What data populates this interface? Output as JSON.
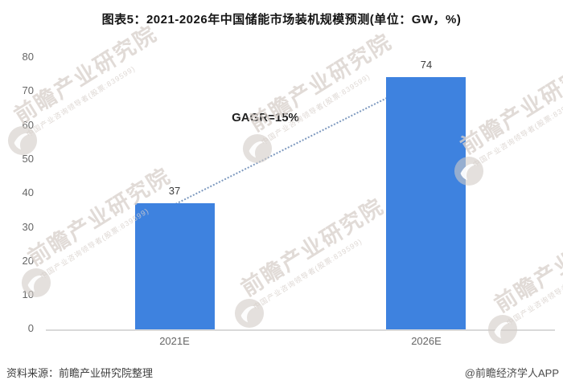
{
  "title": "图表5：2021-2026年中国储能市场装机规模预测(单位：GW，%)",
  "chart_data": {
    "type": "bar",
    "title": "图表5：2021-2026年中国储能市场装机规模预测",
    "unit_note": "单位：GW，%",
    "categories": [
      "2021E",
      "2026E"
    ],
    "values": [
      37,
      74
    ],
    "annotation": "GAGR=15%",
    "ylim": [
      0,
      80
    ],
    "yticks": [
      80,
      70,
      60,
      50,
      40,
      30,
      20,
      10,
      0
    ],
    "xlabel": "",
    "ylabel": "",
    "grid": false,
    "legend_position": "none",
    "bar_color": "#3E82DF",
    "trendline_color": "#7D99BF",
    "axis_color": "#D9D9D9"
  },
  "footer": {
    "source": "资料来源：前瞻产业研究院整理",
    "credit": "@前瞻经济学人APP"
  },
  "watermark": {
    "text": "前瞻产业研究院",
    "subtext": "中国产业咨询领导者(股票:839599)"
  }
}
